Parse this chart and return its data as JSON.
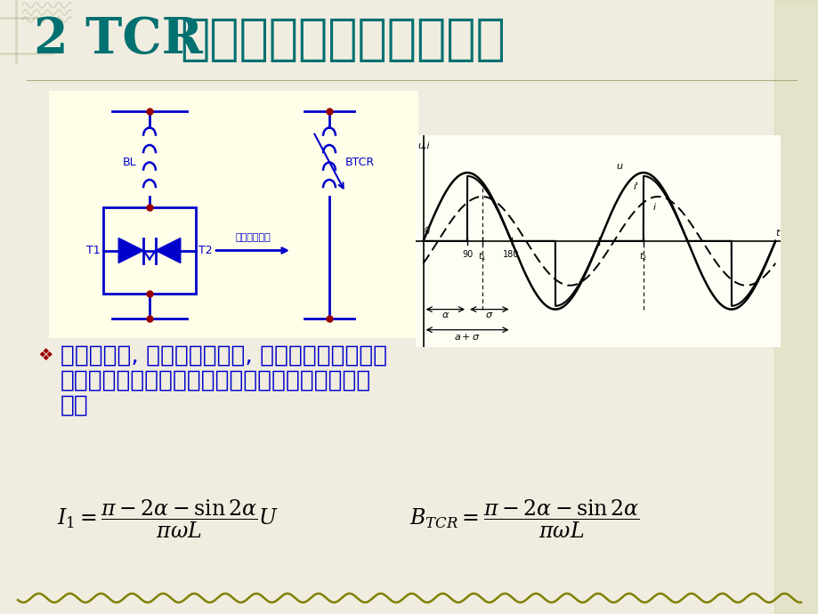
{
  "title_part1": "2 TCR",
  "title_part2": "型静止无功补偿基本原理",
  "title_color": "#007070",
  "bg_color": "#f5f0d8",
  "slide_bg": "#f0ede0",
  "text_line1": "通过调节角, 便可以调节电流, 从而达到调节回路感",
  "text_line2": "抗和基波无功的目的。基波分量可由傅立叶分析求",
  "text_line3": "得，",
  "text_color": "#0000cc",
  "circuit_color": "#0000cc",
  "bullet_color": "#990000",
  "wave_bg": "#fffef5",
  "circuit_bg": "#fffee8"
}
